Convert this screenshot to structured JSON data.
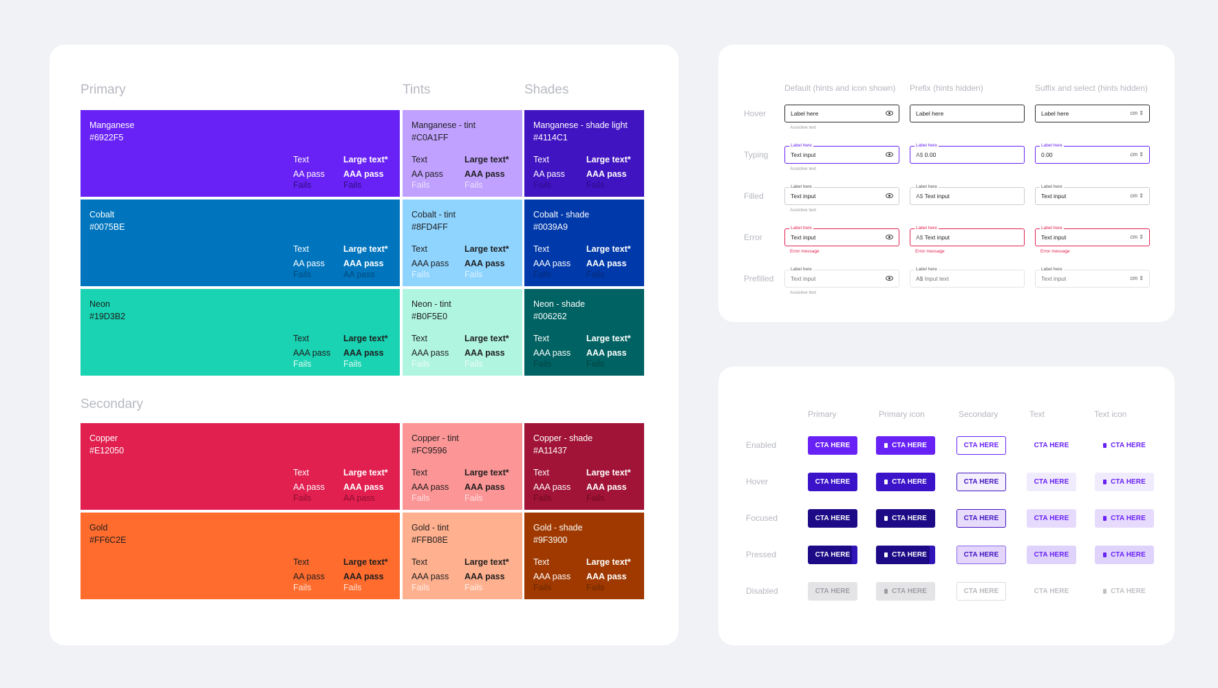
{
  "palette": {
    "primary_title": "Primary",
    "tints_title": "Tints",
    "shades_title": "Shades",
    "secondary_title": "Secondary",
    "contrast_headers": {
      "text": "Text",
      "large": "Large text*"
    },
    "primary": [
      {
        "base": {
          "name": "Manganese",
          "hex": "#6922F5",
          "color": "#6922F5",
          "fg": "#ffffff",
          "fail": "#2e0d80",
          "text": "AA pass",
          "large": "AAA pass",
          "text_fail": "Fails",
          "large_fail": "Fails"
        },
        "tint": {
          "name": "Manganese - tint",
          "hex": "#C0A1FF",
          "color": "#C0A1FF",
          "fg": "#1e1e1e",
          "fail": "#ebe0ff",
          "text": "AA pass",
          "large": "AAA pass",
          "text_fail": "Fails",
          "large_fail": "Fails"
        },
        "shade": {
          "name": "Manganese - shade light",
          "hex": "#4114C1",
          "color": "#4114C1",
          "fg": "#ffffff",
          "fail": "#2a0a8a",
          "text": "AA pass",
          "large": "AAA pass",
          "text_fail": "Fails",
          "large_fail": "Fails"
        }
      },
      {
        "base": {
          "name": "Cobalt",
          "hex": "#0075BE",
          "color": "#0075BE",
          "fg": "#ffffff",
          "fail": "#04497a",
          "text": "AA pass",
          "large": "AAA pass",
          "text_fail": "Fails",
          "large_fail": "AA pass"
        },
        "tint": {
          "name": "Cobalt - tint",
          "hex": "#8FD4FF",
          "color": "#8FD4FF",
          "fg": "#1e1e1e",
          "fail": "#dcf2ff",
          "text": "AAA pass",
          "large": "AAA pass",
          "text_fail": "Fails",
          "large_fail": "Fails"
        },
        "shade": {
          "name": "Cobalt - shade",
          "hex": "#0039A9",
          "color": "#0039A9",
          "fg": "#ffffff",
          "fail": "#062a78",
          "text": "AAA pass",
          "large": "AAA pass",
          "text_fail": "Fails",
          "large_fail": "Fails"
        }
      },
      {
        "base": {
          "name": "Neon",
          "hex": "#19D3B2",
          "color": "#19D3B2",
          "fg": "#1e1e1e",
          "fail": "#e6fbf6",
          "text": "AAA pass",
          "large": "AAA pass",
          "text_fail": "Fails",
          "large_fail": "Fails"
        },
        "tint": {
          "name": "Neon - tint",
          "hex": "#B0F5E0",
          "color": "#B0F5E0",
          "fg": "#1e1e1e",
          "fail": "#ebfcf6",
          "text": "AAA pass",
          "large": "AAA pass",
          "text_fail": "Fails",
          "large_fail": "Fails"
        },
        "shade": {
          "name": "Neon - shade",
          "hex": "#006262",
          "color": "#006262",
          "fg": "#ffffff",
          "fail": "#034444",
          "text": "AAA pass",
          "large": "AAA pass",
          "text_fail": "Fails",
          "large_fail": "Fails"
        }
      }
    ],
    "secondary": [
      {
        "base": {
          "name": "Copper",
          "hex": "#E12050",
          "color": "#E12050",
          "fg": "#ffffff",
          "fail": "#8e0c2c",
          "text": "AA pass",
          "large": "AAA pass",
          "text_fail": "Fails",
          "large_fail": "AA pass"
        },
        "tint": {
          "name": "Copper - tint",
          "hex": "#FC9596",
          "color": "#FC9596",
          "fg": "#1e1e1e",
          "fail": "#ffe0e0",
          "text": "AAA pass",
          "large": "AAA pass",
          "text_fail": "Fails",
          "large_fail": "Fails"
        },
        "shade": {
          "name": "Copper - shade",
          "hex": "#A11437",
          "color": "#A11437",
          "fg": "#ffffff",
          "fail": "#6e0822",
          "text": "AAA pass",
          "large": "AAA pass",
          "text_fail": "Fails",
          "large_fail": "Fails"
        }
      },
      {
        "base": {
          "name": "Gold",
          "hex": "#FF6C2E",
          "color": "#FF6C2E",
          "fg": "#1e1e1e",
          "fail": "#ffe2d4",
          "text": "AA pass",
          "large": "AAA pass",
          "text_fail": "Fails",
          "large_fail": "Fails"
        },
        "tint": {
          "name": "Gold - tint",
          "hex": "#FFB08E",
          "color": "#FFB08E",
          "fg": "#1e1e1e",
          "fail": "#fff0e8",
          "text": "AAA pass",
          "large": "AAA pass",
          "text_fail": "Fails",
          "large_fail": "Fails"
        },
        "shade": {
          "name": "Gold - shade",
          "hex": "#9F3900",
          "color": "#9F3900",
          "fg": "#ffffff",
          "fail": "#6a2600",
          "text": "AAA pass",
          "large": "AAA pass",
          "text_fail": "Fails",
          "large_fail": "Fails"
        }
      }
    ]
  },
  "inputs": {
    "columns": [
      "Default (hints and icon shown)",
      "Prefix (hints hidden)",
      "Suffix and select (hints hidden)"
    ],
    "rows": [
      {
        "state": "Hover",
        "cls": "hover",
        "cells": [
          {
            "float": "",
            "prefix": "",
            "value": "Label here",
            "suffix": "eye",
            "hint": "Assistive text"
          },
          {
            "float": "",
            "prefix": "",
            "value": "Label here",
            "suffix": "",
            "hint": ""
          },
          {
            "float": "",
            "prefix": "",
            "value": "Label here",
            "suffix": "cm ⇕",
            "hint": ""
          }
        ]
      },
      {
        "state": "Typing",
        "cls": "typing",
        "cells": [
          {
            "float": "Label here",
            "prefix": "",
            "value": "Text input",
            "suffix": "eye",
            "hint": "Assistive text"
          },
          {
            "float": "Label here",
            "prefix": "A$",
            "value": "0.00",
            "suffix": "",
            "hint": ""
          },
          {
            "float": "Label here",
            "prefix": "",
            "value": "0.00",
            "suffix": "cm ⇕",
            "hint": ""
          }
        ]
      },
      {
        "state": "Filled",
        "cls": "filled",
        "cells": [
          {
            "float": "Label here",
            "prefix": "",
            "value": "Text input",
            "suffix": "eye",
            "hint": "Assistive text"
          },
          {
            "float": "Label here",
            "prefix": "A$",
            "value": "Text input",
            "suffix": "",
            "hint": ""
          },
          {
            "float": "Label here",
            "prefix": "",
            "value": "Text input",
            "suffix": "cm ⇕",
            "hint": ""
          }
        ]
      },
      {
        "state": "Error",
        "cls": "error",
        "cells": [
          {
            "float": "Label here",
            "prefix": "",
            "value": "Text input",
            "suffix": "eye",
            "hint": "Error message"
          },
          {
            "float": "Label here",
            "prefix": "A$",
            "value": "Text input",
            "suffix": "",
            "hint": "Error message"
          },
          {
            "float": "Label here",
            "prefix": "",
            "value": "Text input",
            "suffix": "cm ⇕",
            "hint": "Error message"
          }
        ]
      },
      {
        "state": "Prefilled",
        "cls": "prefilled",
        "cells": [
          {
            "float": "Label here",
            "prefix": "",
            "value": "Text input",
            "suffix": "eye",
            "hint": "Assistive text"
          },
          {
            "float": "Label here",
            "prefix": "A$",
            "value": "Input text",
            "suffix": "",
            "hint": ""
          },
          {
            "float": "Label here",
            "prefix": "",
            "value": "Text input",
            "suffix": "cm ⇕",
            "hint": ""
          }
        ]
      }
    ]
  },
  "buttons": {
    "columns": [
      "Primary",
      "Primary icon",
      "Secondary",
      "Text",
      "Text icon"
    ],
    "label": "CTA HERE",
    "rows": [
      {
        "state": "Enabled",
        "cls": ""
      },
      {
        "state": "Hover",
        "cls": "hover"
      },
      {
        "state": "Focused",
        "cls": "focus"
      },
      {
        "state": "Pressed",
        "cls": "press"
      },
      {
        "state": "Disabled",
        "cls": "dis"
      }
    ]
  }
}
